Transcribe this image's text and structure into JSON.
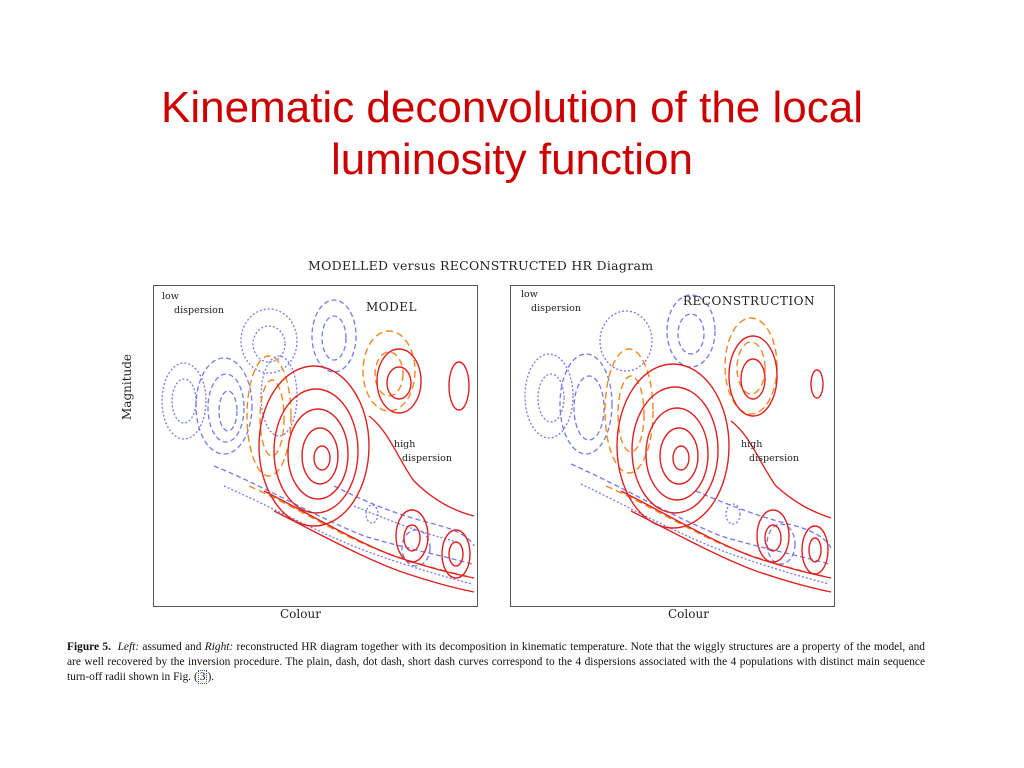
{
  "slide": {
    "title": "Kinematic deconvolution of the local luminosity function"
  },
  "figure": {
    "title": "MODELLED versus RECONSTRUCTED HR Diagram",
    "y_axis_label": "Magnitude",
    "left_panel": {
      "heading": "MODEL",
      "low_label_1": "low",
      "low_label_2": "dispersion",
      "high_label_1": "high",
      "high_label_2": "dispersion",
      "x_axis_label": "Colour"
    },
    "right_panel": {
      "heading": "RECONSTRUCTION",
      "low_label_1": "low",
      "low_label_2": "dispersion",
      "high_label_1": "high",
      "high_label_2": "dispersion",
      "x_axis_label": "Colour"
    },
    "colors": {
      "low_dispersion": "#7777ee",
      "mid_dispersion": "#ee8822",
      "high_dispersion": "#dd2222"
    }
  },
  "caption": {
    "figure_number": "Figure 5.",
    "left_word": "Left:",
    "assumed_and": " assumed and ",
    "right_word": "Right:",
    "text_main": " reconstructed HR diagram together with its decomposition in kinematic temperature. Note that the wiggly structures are a property of the model, and are well recovered by the inversion procedure. The plain, dash, dot dash, short dash curves correspond to the 4 dispersions associated with the 4 populations with distinct main sequence turn-off radii shown in Fig. (",
    "fig_ref": "3",
    "text_end": ")."
  }
}
